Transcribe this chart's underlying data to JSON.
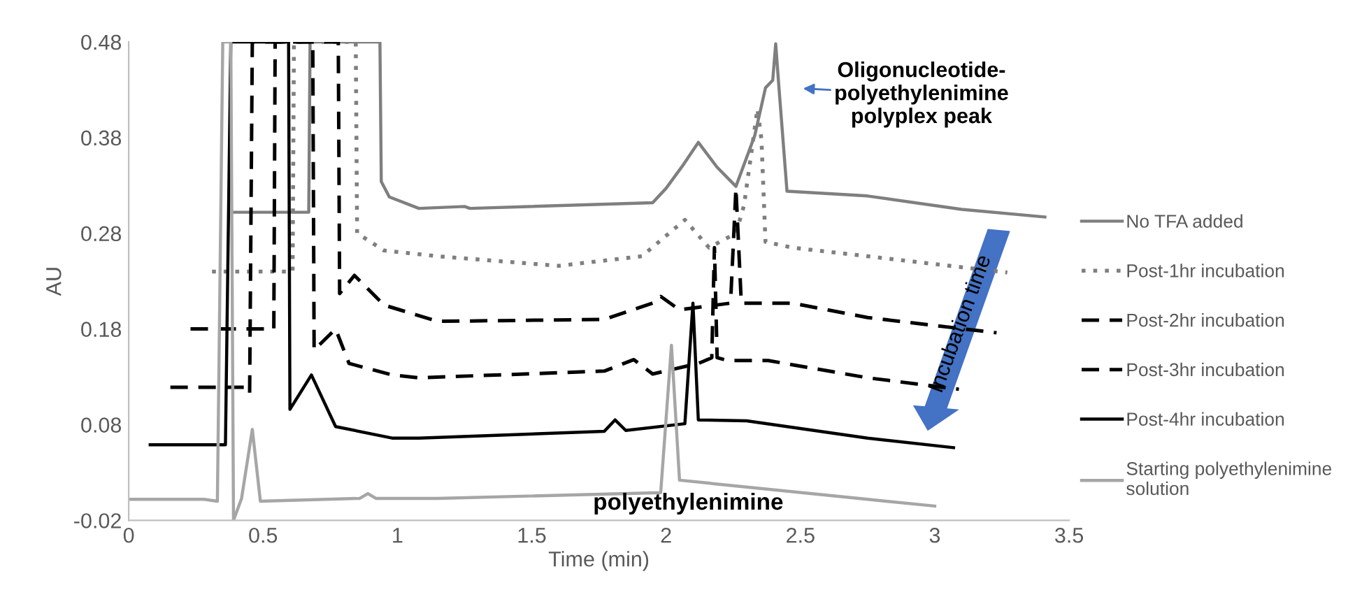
{
  "chart_data": {
    "type": "line",
    "xlabel": "Time (min)",
    "ylabel": "AU",
    "xlim": [
      0,
      3.5
    ],
    "xticks": [
      0,
      0.5,
      1,
      1.5,
      2,
      2.5,
      3,
      3.5
    ],
    "ylim": [
      -0.02,
      0.48
    ],
    "yticks": [
      -0.02,
      0.08,
      0.18,
      0.28,
      0.38,
      0.48
    ],
    "grid": false,
    "legend": "right",
    "marker": "none",
    "annotations": [
      "Oligonucleotide-\npolyethylenimine\npolyplex peak",
      "polyethylenimine",
      "Incubation time"
    ],
    "series": [
      {
        "name": "No TFA added",
        "color": "#7f7f7f",
        "line_style": "solid",
        "x": [
          0.39,
          0.67,
          0.675,
          0.935,
          0.94,
          0.97,
          1.08,
          1.25,
          1.27,
          1.95,
          2.0,
          2.06,
          2.12,
          2.19,
          2.26,
          2.33,
          2.37,
          2.397,
          2.408,
          2.418,
          2.45,
          2.75,
          3.1,
          3.41
        ],
        "values": [
          0.302,
          0.302,
          0.48,
          0.48,
          0.334,
          0.318,
          0.306,
          0.308,
          0.306,
          0.312,
          0.327,
          0.35,
          0.375,
          0.349,
          0.329,
          0.382,
          0.432,
          0.44,
          0.478,
          0.44,
          0.324,
          0.319,
          0.305,
          0.297
        ]
      },
      {
        "name": "Post-1hr incubation",
        "color": "#7f7f7f",
        "line_style": "dotted",
        "x": [
          0.31,
          0.61,
          0.615,
          0.845,
          0.85,
          0.95,
          1.15,
          1.6,
          1.91,
          2.07,
          2.16,
          2.26,
          2.29,
          2.34,
          2.355,
          2.37,
          2.47,
          2.75,
          3.27
        ],
        "values": [
          0.24,
          0.24,
          0.48,
          0.48,
          0.28,
          0.262,
          0.256,
          0.246,
          0.256,
          0.294,
          0.265,
          0.28,
          0.309,
          0.41,
          0.378,
          0.271,
          0.265,
          0.256,
          0.239
        ]
      },
      {
        "name": "Post-2hr incubation",
        "color": "#000000",
        "line_style": "dashed",
        "x": [
          0.23,
          0.54,
          0.545,
          0.78,
          0.785,
          0.84,
          0.95,
          1.15,
          1.77,
          1.95,
          1.98,
          2.05,
          2.24,
          2.26,
          2.28,
          2.47,
          2.75,
          3.23
        ],
        "values": [
          0.18,
          0.18,
          0.48,
          0.48,
          0.217,
          0.236,
          0.205,
          0.188,
          0.19,
          0.207,
          0.214,
          0.2,
          0.207,
          0.327,
          0.207,
          0.207,
          0.192,
          0.176
        ]
      },
      {
        "name": "Post-3hr incubation",
        "color": "#000000",
        "line_style": "dashed",
        "x": [
          0.155,
          0.43,
          0.45,
          0.46,
          0.685,
          0.69,
          0.77,
          0.82,
          0.98,
          1.08,
          1.77,
          1.88,
          1.95,
          2.12,
          2.17,
          2.18,
          2.19,
          2.23,
          2.38,
          2.75,
          3.09
        ],
        "values": [
          0.119,
          0.119,
          0.112,
          0.48,
          0.48,
          0.158,
          0.18,
          0.144,
          0.132,
          0.129,
          0.136,
          0.148,
          0.133,
          0.144,
          0.15,
          0.265,
          0.15,
          0.147,
          0.147,
          0.129,
          0.117
        ]
      },
      {
        "name": "Post-4hr incubation",
        "color": "#000000",
        "line_style": "solid",
        "x": [
          0.08,
          0.36,
          0.38,
          0.595,
          0.6,
          0.68,
          0.77,
          0.98,
          1.08,
          1.77,
          1.81,
          1.85,
          2.07,
          2.1,
          2.12,
          2.3,
          2.75,
          3.07
        ],
        "values": [
          0.059,
          0.059,
          0.48,
          0.48,
          0.096,
          0.132,
          0.078,
          0.066,
          0.066,
          0.073,
          0.085,
          0.074,
          0.081,
          0.207,
          0.085,
          0.084,
          0.066,
          0.056
        ]
      },
      {
        "name": "Starting polyethylenimine solution",
        "color": "#a6a6a6",
        "line_style": "solid",
        "x": [
          0.0,
          0.28,
          0.33,
          0.35,
          0.38,
          0.39,
          0.42,
          0.46,
          0.49,
          0.86,
          0.89,
          0.92,
          1.15,
          1.98,
          2.02,
          2.05,
          2.75,
          3.0
        ],
        "values": [
          0.002,
          0.002,
          0.0,
          0.48,
          0.48,
          -0.02,
          0.003,
          0.075,
          0.0,
          0.003,
          0.008,
          0.003,
          0.003,
          0.009,
          0.163,
          0.022,
          0.002,
          -0.005
        ]
      }
    ]
  }
}
